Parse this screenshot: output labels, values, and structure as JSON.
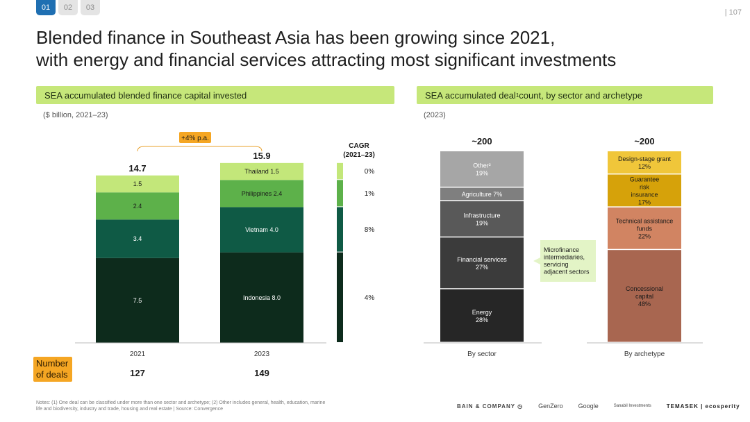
{
  "nav": {
    "tabs": [
      "01",
      "02",
      "03"
    ],
    "page_number": "| 107"
  },
  "title": {
    "line1": "Blended finance in Southeast Asia has been growing since 2021,",
    "line2": "with energy and financial services attracting most significant investments"
  },
  "left_panel": {
    "header": "SEA accumulated blended finance capital invested",
    "subtitle": "($ billion, 2021–23)"
  },
  "right_panel": {
    "header_pre": "SEA accumulated deal",
    "header_sup": "1",
    "header_post": " count, by sector and archetype",
    "subtitle": "(2023)"
  },
  "deals": {
    "label": "Number of deals",
    "values": [
      "127",
      "149"
    ]
  },
  "colors": {
    "indonesia": "#0d2b1c",
    "vietnam": "#0f5a45",
    "philippines": "#5db14a",
    "thailand": "#c3e77a",
    "energy": "#262626",
    "financial": "#3b3b3b",
    "infrastructure": "#595959",
    "agriculture": "#7f7f7f",
    "other": "#a6a6a6",
    "concessional": "#a86650",
    "technical": "#d18462",
    "guarantee": "#d6a20a",
    "design": "#f0c63a",
    "growth_badge": "#f5a623",
    "bracket": "#e8a02a",
    "callout": "#e3f4c6"
  },
  "chart_data": [
    {
      "type": "bar",
      "stacked": true,
      "title": "",
      "categories": [
        "2021",
        "2023"
      ],
      "series": [
        {
          "name": "Indonesia",
          "values": [
            7.5,
            8.0
          ],
          "labels": [
            "7.5",
            "Indonesia 8.0"
          ]
        },
        {
          "name": "Vietnam",
          "values": [
            3.4,
            4.0
          ],
          "labels": [
            "3.4",
            "Vietnam 4.0"
          ]
        },
        {
          "name": "Philippines",
          "values": [
            2.4,
            2.4
          ],
          "labels": [
            "2.4",
            "Philippines 2.4"
          ]
        },
        {
          "name": "Thailand",
          "values": [
            1.5,
            1.5
          ],
          "labels": [
            "1.5",
            "Thailand  1.5"
          ]
        }
      ],
      "totals": [
        "14.7",
        "15.9"
      ],
      "growth_label": "+4% p.a.",
      "cagr": {
        "title_line1": "CAGR",
        "title_line2": "(2021–23)",
        "values": [
          "4%",
          "8%",
          "1%",
          "0%"
        ]
      }
    },
    {
      "type": "bar",
      "stacked": true,
      "title": "~200",
      "category": "By sector",
      "segments": [
        {
          "name": "Energy",
          "value": 28,
          "label": "Energy",
          "pct": "28%"
        },
        {
          "name": "Financial services",
          "value": 27,
          "label": "Financial services",
          "pct": "27%"
        },
        {
          "name": "Infrastructure",
          "value": 19,
          "label": "Infrastructure",
          "pct": "19%"
        },
        {
          "name": "Agriculture",
          "value": 7,
          "label": "Agriculture 7%",
          "pct": ""
        },
        {
          "name": "Other",
          "value": 19,
          "label": "Other²",
          "pct": "19%"
        }
      ],
      "callout": "Microfinance intermediaries, servicing adjacent sectors"
    },
    {
      "type": "bar",
      "stacked": true,
      "title": "~200",
      "category": "By archetype",
      "segments": [
        {
          "name": "Concessional capital",
          "value": 48,
          "label": "Concessional capital",
          "pct": "48%"
        },
        {
          "name": "Technical assistance funds",
          "value": 22,
          "label": "Technical assistance funds",
          "pct": "22%"
        },
        {
          "name": "Guarantee/risk insurance",
          "value": 17,
          "label": "Guarantee/risk insurance",
          "pct": "17%"
        },
        {
          "name": "Design-stage grant",
          "value": 12,
          "label": "Design-stage grant",
          "pct": "12%"
        }
      ]
    }
  ],
  "notes": "Notes: (1) One deal can be classified under more than one sector and archetype; (2) Other includes general, health, education, marine life and biodiversity, industry and trade, housing and real estate | Source: Convergence",
  "logos": [
    "BAIN & COMPANY ◷",
    "GenZero",
    "Google",
    "Sanabil Investments",
    "TEMASEK | ecosperity"
  ]
}
